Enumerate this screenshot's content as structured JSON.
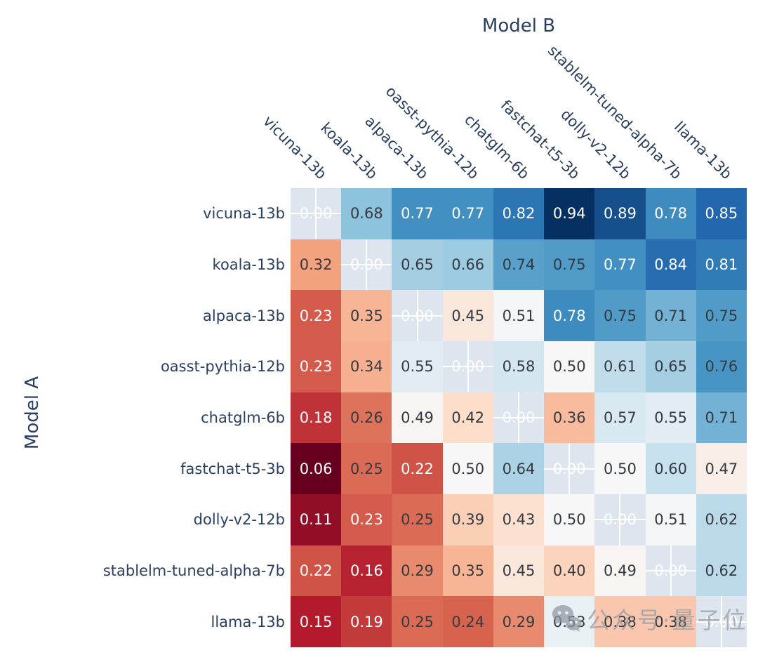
{
  "chart_data": {
    "type": "heatmap",
    "title": "",
    "xlabel": "Model B",
    "ylabel": "Model A",
    "x_categories": [
      "vicuna-13b",
      "koala-13b",
      "alpaca-13b",
      "oasst-pythia-12b",
      "chatglm-6b",
      "fastchat-t5-3b",
      "dolly-v2-12b",
      "stablelm-tuned-alpha-7b",
      "llama-13b"
    ],
    "y_categories": [
      "vicuna-13b",
      "koala-13b",
      "alpaca-13b",
      "oasst-pythia-12b",
      "chatglm-6b",
      "fastchat-t5-3b",
      "dolly-v2-12b",
      "stablelm-tuned-alpha-7b",
      "llama-13b"
    ],
    "matrix": [
      [
        null,
        0.68,
        0.77,
        0.77,
        0.82,
        0.94,
        0.89,
        0.78,
        0.85
      ],
      [
        0.32,
        null,
        0.65,
        0.66,
        0.74,
        0.75,
        0.77,
        0.84,
        0.81
      ],
      [
        0.23,
        0.35,
        null,
        0.45,
        0.51,
        0.78,
        0.75,
        0.71,
        0.75
      ],
      [
        0.23,
        0.34,
        0.55,
        null,
        0.58,
        0.5,
        0.61,
        0.65,
        0.76
      ],
      [
        0.18,
        0.26,
        0.49,
        0.42,
        null,
        0.36,
        0.57,
        0.55,
        0.71
      ],
      [
        0.06,
        0.25,
        0.22,
        0.5,
        0.64,
        null,
        0.5,
        0.6,
        0.47
      ],
      [
        0.11,
        0.23,
        0.25,
        0.39,
        0.43,
        0.5,
        null,
        0.51,
        0.62
      ],
      [
        0.22,
        0.16,
        0.29,
        0.35,
        0.45,
        0.4,
        0.49,
        null,
        0.62
      ],
      [
        0.15,
        0.19,
        0.25,
        0.24,
        0.29,
        0.53,
        0.38,
        0.38,
        null
      ]
    ],
    "diagonal_label": "0.00",
    "value_format_decimals": 2,
    "zmin": 0.06,
    "zmax": 0.94,
    "colorscale_name": "RdBu",
    "colorscale": [
      [
        103,
        0,
        31
      ],
      [
        178,
        24,
        43
      ],
      [
        214,
        96,
        77
      ],
      [
        244,
        165,
        130
      ],
      [
        253,
        219,
        199
      ],
      [
        247,
        247,
        247
      ],
      [
        209,
        229,
        240
      ],
      [
        146,
        197,
        222
      ],
      [
        67,
        147,
        195
      ],
      [
        33,
        102,
        172
      ],
      [
        5,
        48,
        97
      ]
    ],
    "nan_cell_color": "#dfe5ef",
    "gridline_color": "#ffffff",
    "label_color": "#2a3f5f",
    "value_text_dark": "#353a40",
    "value_text_light": "#ffffff",
    "legend": "none",
    "grid_visible_only_on_nan_cells": true
  },
  "watermark": {
    "icon": "wechat-icon",
    "text": "公众号·量子位"
  }
}
